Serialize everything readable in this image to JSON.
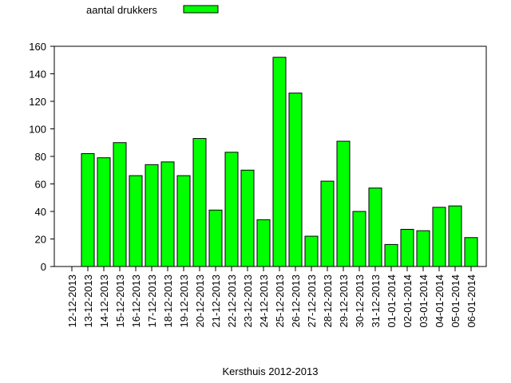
{
  "chart_data": {
    "type": "bar",
    "title": "",
    "xlabel": "Kersthuis 2012-2013",
    "ylabel": "",
    "ylim": [
      0,
      160
    ],
    "yticks": [
      0,
      20,
      40,
      60,
      80,
      100,
      120,
      140,
      160
    ],
    "grid": false,
    "legend_position": "top-left",
    "categories": [
      "12-12-2013",
      "13-12-2013",
      "14-12-2013",
      "15-12-2013",
      "16-12-2013",
      "17-12-2013",
      "18-12-2013",
      "19-12-2013",
      "20-12-2013",
      "21-12-2013",
      "22-12-2013",
      "23-12-2013",
      "24-12-2013",
      "25-12-2013",
      "26-12-2013",
      "27-12-2013",
      "28-12-2013",
      "29-12-2013",
      "30-12-2013",
      "31-12-2013",
      "01-01-2014",
      "02-01-2014",
      "03-01-2014",
      "04-01-2014",
      "05-01-2014",
      "06-01-2014"
    ],
    "series": [
      {
        "name": "aantal drukkers",
        "color": "#00ff00",
        "values": [
          0,
          82,
          79,
          90,
          66,
          74,
          76,
          66,
          93,
          41,
          83,
          70,
          34,
          152,
          126,
          22,
          62,
          91,
          40,
          57,
          16,
          27,
          26,
          43,
          44,
          21
        ]
      }
    ]
  }
}
